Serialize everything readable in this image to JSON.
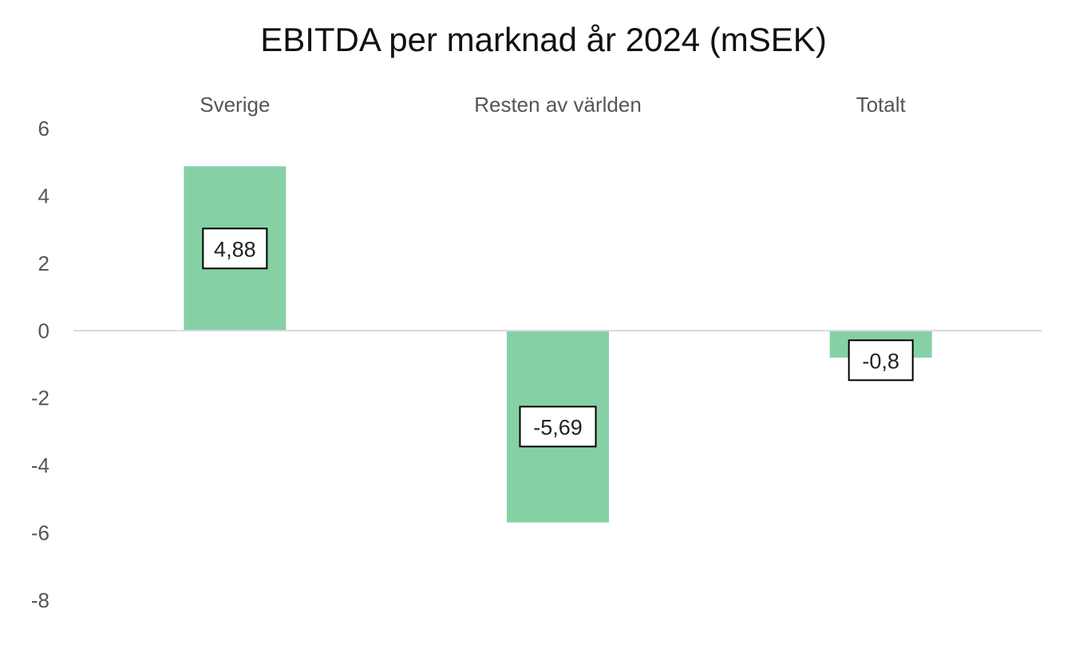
{
  "chart_data": {
    "type": "bar",
    "title": "EBITDA per marknad år 2024 (mSEK)",
    "categories": [
      "Sverige",
      "Resten av världen",
      "Totalt"
    ],
    "values": [
      4.88,
      -5.69,
      -0.8
    ],
    "data_labels": [
      "4,88",
      "-5,69",
      "-0,8"
    ],
    "yticks": [
      6,
      4,
      2,
      0,
      -2,
      -4,
      -6,
      -8
    ],
    "ylim": [
      -8,
      6
    ],
    "xlabel": "",
    "ylabel": "",
    "category_labels_position": "top",
    "grid": false,
    "legend": "none",
    "bar_color": "#85d1a5",
    "axis_color": "#d9d9d9"
  }
}
